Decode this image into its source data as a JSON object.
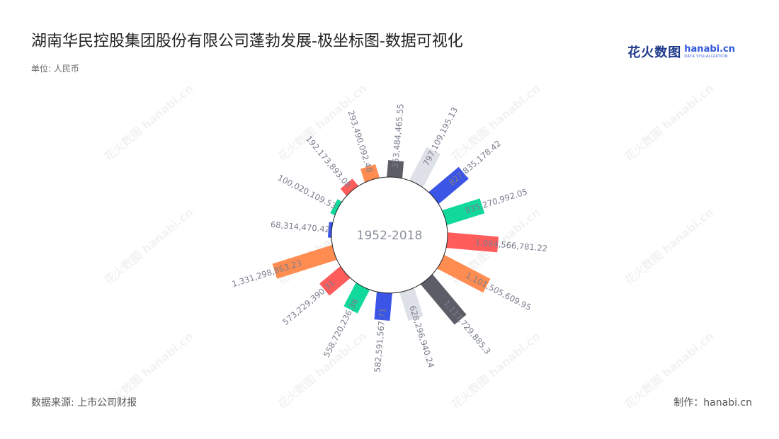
{
  "header": {
    "title": "湖南华民控股集团股份有限公司蓬勃发展-极坐标图-数据可视化",
    "unit": "单位: 人民币"
  },
  "logo": {
    "cn": "花火数图",
    "en": "hanabi.cn",
    "sub": "DATA VISUALIZATION"
  },
  "footer": {
    "source": "数据来源: 上市公司财报",
    "maker": "制作：hanabi.cn"
  },
  "watermark": "花火数图 hanabi.cn",
  "chart_data": {
    "type": "bar",
    "polar": true,
    "center_label": "1952-2018",
    "value_labels": [
      "353,484,465.55",
      "797,109,195.13",
      "827,835,178.42",
      "835,270,992.05",
      "1,084,566,781.22",
      "1,101,505,609.95",
      "1,117,729,885.3",
      "628,296,940.24",
      "582,591,567.71",
      "558,720,236.36",
      "573,229,390.31",
      "1,331,298,863.23",
      "68,314,470.42",
      "100,020,109.53",
      "192,173,893.08",
      "293,490,092.48"
    ],
    "values": [
      353484465.55,
      797109195.13,
      827835178.42,
      835270992.05,
      1084566781.22,
      1101505609.95,
      1117729885.3,
      628296940.24,
      582591567.71,
      558720236.36,
      573229390.31,
      1331298863.23,
      68314470.42,
      100020109.53,
      192173893.08,
      293490092.48
    ],
    "colors": [
      "#5c5d66",
      "#dfe1e8",
      "#3b55e6",
      "#10d99b",
      "#ff5c5c",
      "#ff8c50",
      "#5c5d66",
      "#dfe1e8",
      "#3b55e6",
      "#10d99b",
      "#ff5c5c",
      "#ff8c50",
      "#3b55e6",
      "#10d99b",
      "#ff5c5c",
      "#ff8c50"
    ]
  }
}
